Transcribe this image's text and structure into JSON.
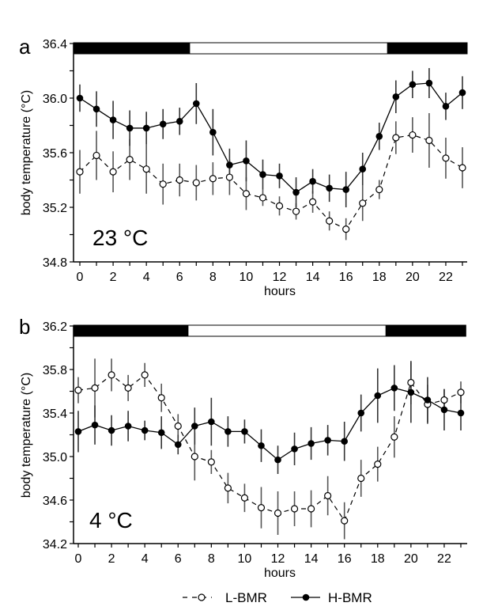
{
  "legend": {
    "items": [
      {
        "label": "L-BMR",
        "marker": "open-circle",
        "line": "dashed"
      },
      {
        "label": "H-BMR",
        "marker": "filled-circle",
        "line": "solid"
      }
    ]
  },
  "chart_data": [
    {
      "type": "line",
      "panel": "a",
      "condition_label": "23 °C",
      "xlabel": "hours",
      "ylabel": "body temperature (°C)",
      "x": [
        0,
        1,
        2,
        3,
        4,
        5,
        6,
        7,
        8,
        9,
        10,
        11,
        12,
        13,
        14,
        15,
        16,
        17,
        18,
        19,
        20,
        21,
        22,
        23
      ],
      "xticks": [
        0,
        2,
        4,
        6,
        8,
        10,
        12,
        14,
        16,
        18,
        20,
        22
      ],
      "xlim": [
        -0.4,
        23.3
      ],
      "ylim": [
        34.8,
        36.4
      ],
      "yticks": [
        "34.8",
        "35.2",
        "35.6",
        "36.0",
        "36.4"
      ],
      "light_dark_bar": [
        {
          "from": -0.4,
          "to": 6.6,
          "phase": "dark"
        },
        {
          "from": 6.6,
          "to": 18.5,
          "phase": "light"
        },
        {
          "from": 18.5,
          "to": 23.3,
          "phase": "dark"
        }
      ],
      "grid": false,
      "series": [
        {
          "name": "L-BMR",
          "values": [
            35.46,
            35.58,
            35.46,
            35.55,
            35.48,
            35.37,
            35.4,
            35.38,
            35.41,
            35.42,
            35.3,
            35.27,
            35.21,
            35.17,
            35.24,
            35.1,
            35.04,
            35.23,
            35.33,
            35.71,
            35.73,
            35.69,
            35.56,
            35.49
          ],
          "errors": [
            0.16,
            0.18,
            0.15,
            0.15,
            0.18,
            0.15,
            0.12,
            0.13,
            0.12,
            0.13,
            0.12,
            0.06,
            0.07,
            0.06,
            0.08,
            0.07,
            0.08,
            0.13,
            0.07,
            0.12,
            0.13,
            0.2,
            0.15,
            0.15
          ]
        },
        {
          "name": "H-BMR",
          "values": [
            36.0,
            35.92,
            35.84,
            35.78,
            35.78,
            35.81,
            35.83,
            35.96,
            35.75,
            35.51,
            35.54,
            35.44,
            35.43,
            35.31,
            35.39,
            35.34,
            35.33,
            35.48,
            35.72,
            36.01,
            36.1,
            36.11,
            35.94,
            36.04
          ]
        },
        {
          "name": "H-BMR-errors",
          "values": [
            0.1,
            0.13,
            0.14,
            0.13,
            0.12,
            0.11,
            0.1,
            0.15,
            0.17,
            0.12,
            0.15,
            0.11,
            0.09,
            0.11,
            0.09,
            0.1,
            0.13,
            0.12,
            0.1,
            0.12,
            0.1,
            0.11,
            0.1,
            0.12
          ]
        }
      ]
    },
    {
      "type": "line",
      "panel": "b",
      "condition_label": "4 °C",
      "xlabel": "hours",
      "ylabel": "body temperature (°C)",
      "x": [
        0,
        1,
        2,
        3,
        4,
        5,
        6,
        7,
        8,
        9,
        10,
        11,
        12,
        13,
        14,
        15,
        16,
        17,
        18,
        19,
        20,
        21,
        22,
        23
      ],
      "xticks": [
        0,
        2,
        4,
        6,
        8,
        10,
        12,
        14,
        16,
        18,
        20,
        22
      ],
      "xlim": [
        -0.4,
        23.3
      ],
      "ylim": [
        34.2,
        36.2
      ],
      "yticks": [
        "34.2",
        "34.6",
        "35.0",
        "35.4",
        "35.8",
        "36.2"
      ],
      "light_dark_bar": [
        {
          "from": -0.4,
          "to": 6.6,
          "phase": "dark"
        },
        {
          "from": 6.6,
          "to": 18.5,
          "phase": "light"
        },
        {
          "from": 18.5,
          "to": 23.3,
          "phase": "dark"
        }
      ],
      "grid": false,
      "series": [
        {
          "name": "L-BMR",
          "values": [
            35.61,
            35.63,
            35.75,
            35.63,
            35.75,
            35.54,
            35.28,
            35.0,
            34.95,
            34.71,
            34.62,
            34.53,
            34.48,
            34.52,
            34.52,
            34.64,
            34.41,
            34.8,
            34.93,
            35.18,
            35.68,
            35.48,
            35.52,
            35.59
          ],
          "errors": [
            0.12,
            0.27,
            0.15,
            0.12,
            0.11,
            0.13,
            0.11,
            0.22,
            0.11,
            0.14,
            0.13,
            0.19,
            0.2,
            0.16,
            0.17,
            0.18,
            0.17,
            0.17,
            0.16,
            0.19,
            0.2,
            0.18,
            0.1,
            0.1
          ]
        },
        {
          "name": "H-BMR",
          "values": [
            35.23,
            35.29,
            35.24,
            35.28,
            35.24,
            35.22,
            35.11,
            35.28,
            35.32,
            35.23,
            35.23,
            35.1,
            34.97,
            35.07,
            35.12,
            35.15,
            35.14,
            35.4,
            35.56,
            35.63,
            35.59,
            35.52,
            35.43,
            35.4
          ]
        },
        {
          "name": "H-BMR-errors",
          "values": [
            0.19,
            0.18,
            0.14,
            0.14,
            0.09,
            0.15,
            0.09,
            0.17,
            0.22,
            0.14,
            0.11,
            0.15,
            0.13,
            0.15,
            0.15,
            0.14,
            0.18,
            0.17,
            0.25,
            0.21,
            0.28,
            0.21,
            0.19,
            0.16
          ]
        }
      ]
    }
  ]
}
